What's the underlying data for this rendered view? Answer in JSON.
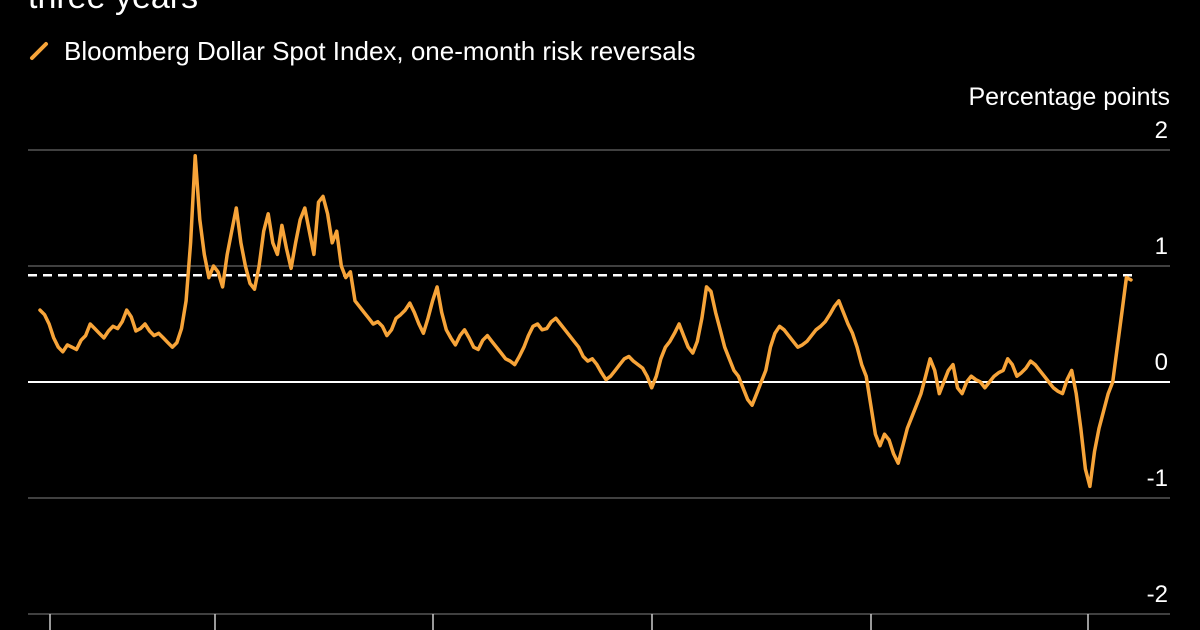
{
  "chart_data": {
    "type": "line",
    "title": "three years",
    "ylabel": "Percentage points",
    "ylim": [
      -2,
      2
    ],
    "yticks": [
      "2",
      "1",
      "0",
      "-1",
      "-2"
    ],
    "reference_line": 0.92,
    "series": [
      {
        "name": "Bloomberg Dollar Spot Index, one-month risk reversals",
        "color": "#F7A439",
        "values": [
          0.62,
          0.58,
          0.5,
          0.38,
          0.3,
          0.26,
          0.32,
          0.3,
          0.28,
          0.36,
          0.4,
          0.5,
          0.46,
          0.42,
          0.38,
          0.44,
          0.48,
          0.46,
          0.52,
          0.62,
          0.56,
          0.44,
          0.46,
          0.5,
          0.44,
          0.4,
          0.42,
          0.38,
          0.34,
          0.3,
          0.34,
          0.46,
          0.7,
          1.2,
          1.95,
          1.4,
          1.1,
          0.9,
          1.0,
          0.95,
          0.82,
          1.1,
          1.3,
          1.5,
          1.2,
          1.0,
          0.85,
          0.8,
          1.0,
          1.3,
          1.45,
          1.2,
          1.1,
          1.35,
          1.15,
          0.98,
          1.2,
          1.4,
          1.5,
          1.3,
          1.1,
          1.55,
          1.6,
          1.45,
          1.2,
          1.3,
          1.0,
          0.9,
          0.95,
          0.7,
          0.65,
          0.6,
          0.55,
          0.5,
          0.52,
          0.48,
          0.4,
          0.45,
          0.55,
          0.58,
          0.62,
          0.68,
          0.6,
          0.5,
          0.42,
          0.55,
          0.7,
          0.82,
          0.6,
          0.45,
          0.38,
          0.32,
          0.4,
          0.45,
          0.38,
          0.3,
          0.28,
          0.36,
          0.4,
          0.35,
          0.3,
          0.25,
          0.2,
          0.18,
          0.15,
          0.22,
          0.3,
          0.4,
          0.48,
          0.5,
          0.45,
          0.46,
          0.52,
          0.55,
          0.5,
          0.45,
          0.4,
          0.35,
          0.3,
          0.22,
          0.18,
          0.2,
          0.15,
          0.08,
          0.02,
          0.05,
          0.1,
          0.15,
          0.2,
          0.22,
          0.18,
          0.15,
          0.12,
          0.05,
          -0.05,
          0.05,
          0.2,
          0.3,
          0.35,
          0.42,
          0.5,
          0.4,
          0.3,
          0.25,
          0.35,
          0.55,
          0.82,
          0.78,
          0.6,
          0.45,
          0.3,
          0.2,
          0.1,
          0.05,
          -0.05,
          -0.15,
          -0.2,
          -0.1,
          0.0,
          0.1,
          0.3,
          0.42,
          0.48,
          0.45,
          0.4,
          0.35,
          0.3,
          0.32,
          0.35,
          0.4,
          0.45,
          0.48,
          0.52,
          0.58,
          0.65,
          0.7,
          0.6,
          0.5,
          0.42,
          0.3,
          0.15,
          0.05,
          -0.2,
          -0.45,
          -0.55,
          -0.45,
          -0.5,
          -0.62,
          -0.7,
          -0.55,
          -0.4,
          -0.3,
          -0.2,
          -0.1,
          0.05,
          0.2,
          0.1,
          -0.1,
          0.0,
          0.1,
          0.15,
          -0.05,
          -0.1,
          0.0,
          0.05,
          0.02,
          0.0,
          -0.05,
          0.0,
          0.05,
          0.08,
          0.1,
          0.2,
          0.15,
          0.05,
          0.08,
          0.12,
          0.18,
          0.15,
          0.1,
          0.05,
          0.0,
          -0.05,
          -0.08,
          -0.1,
          0.02,
          0.1,
          -0.1,
          -0.4,
          -0.75,
          -0.9,
          -0.6,
          -0.4,
          -0.25,
          -0.1,
          0.0,
          0.3,
          0.6,
          0.9,
          0.88
        ]
      }
    ]
  }
}
